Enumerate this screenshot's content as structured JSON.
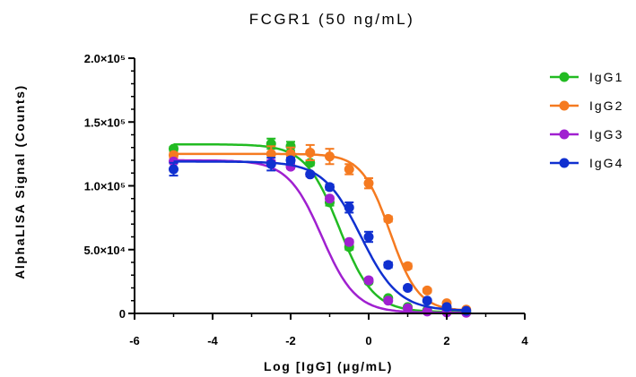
{
  "chart_data": {
    "type": "scatter",
    "title": "FCGR1 (50 ng/mL)",
    "xlabel": "Log [IgG] (µg/mL)",
    "ylabel": "AlphaLISA Signal (Counts)",
    "xlim": [
      -6,
      4
    ],
    "ylim": [
      0,
      200000
    ],
    "x_ticks": [
      -6,
      -4,
      -2,
      0,
      2,
      4
    ],
    "y_ticks": [
      {
        "value": 0,
        "label": "0"
      },
      {
        "value": 50000,
        "label": "5.0×10⁴"
      },
      {
        "value": 100000,
        "label": "1.0×10⁵"
      },
      {
        "value": 150000,
        "label": "1.5×10⁵"
      },
      {
        "value": 200000,
        "label": "2.0×10⁵"
      }
    ],
    "grid": false,
    "legend_position": "right",
    "series": [
      {
        "name": "IgG1",
        "color": "#22bb22",
        "fit": {
          "top": 132500,
          "bottom": 1000,
          "logEC50": -0.75,
          "hill": 1.0
        },
        "x": [
          -5,
          -2.5,
          -2,
          -1.5,
          -1,
          -0.5,
          0,
          0.5,
          1,
          1.5,
          2,
          2.5
        ],
        "y": [
          129000,
          133000,
          131000,
          118000,
          87000,
          52000,
          25000,
          12000,
          5000,
          2500,
          1500,
          1000
        ],
        "err": [
          1500,
          4000,
          3500,
          2000,
          2500,
          2000,
          1500,
          1000,
          500,
          500,
          500,
          500
        ]
      },
      {
        "name": "IgG2",
        "color": "#f57a20",
        "fit": {
          "top": 125000,
          "bottom": 2000,
          "logEC50": 0.55,
          "hill": 1.2
        },
        "x": [
          -5,
          -2.5,
          -2,
          -1.5,
          -1,
          -0.5,
          0,
          0.5,
          1,
          1.5,
          2,
          2.5
        ],
        "y": [
          124000,
          125000,
          125000,
          126000,
          123000,
          113000,
          102000,
          74000,
          37000,
          18000,
          8000,
          3000
        ],
        "err": [
          2000,
          6000,
          5000,
          6000,
          6000,
          4000,
          4000,
          2000,
          2000,
          1500,
          1000,
          500
        ]
      },
      {
        "name": "IgG3",
        "color": "#a020d0",
        "fit": {
          "top": 120000,
          "bottom": 500,
          "logEC50": -1.2,
          "hill": 1.0
        },
        "x": [
          -5,
          -2.5,
          -2,
          -1.5,
          -1,
          -0.5,
          0,
          0.5,
          1,
          1.5,
          2,
          2.5
        ],
        "y": [
          119000,
          118000,
          115000,
          109000,
          90000,
          56000,
          26000,
          10000,
          4000,
          1500,
          800,
          500
        ],
        "err": [
          1500,
          2000,
          1500,
          1500,
          1500,
          1500,
          1500,
          1000,
          500,
          500,
          300,
          300
        ]
      },
      {
        "name": "IgG4",
        "color": "#1030d0",
        "fit": {
          "top": 119000,
          "bottom": 2000,
          "logEC50": -0.2,
          "hill": 0.9
        },
        "x": [
          -5,
          -2.5,
          -2,
          -1.5,
          -1,
          -0.5,
          0,
          0.5,
          1,
          1.5,
          2,
          2.5
        ],
        "y": [
          113000,
          117000,
          120000,
          109000,
          99000,
          83000,
          60000,
          38000,
          20000,
          10000,
          5000,
          2000
        ],
        "err": [
          5000,
          5000,
          2000,
          1500,
          2000,
          4000,
          4000,
          2000,
          1500,
          1000,
          800,
          500
        ]
      }
    ]
  }
}
